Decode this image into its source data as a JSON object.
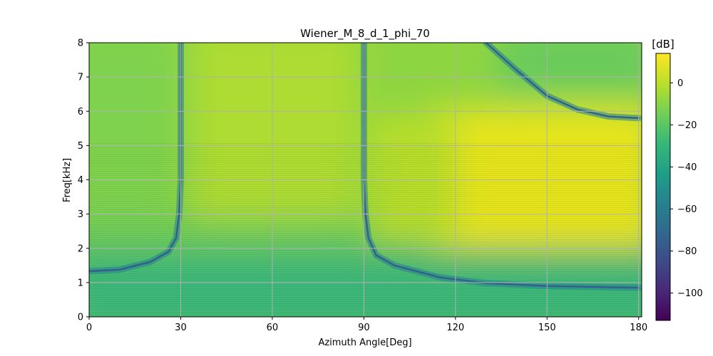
{
  "chart_data": {
    "type": "heatmap",
    "title": "Wiener_M_8_d_1_phi_70",
    "xlabel": "Azimuth Angle[Deg]",
    "ylabel": "Freq[kHz]",
    "xlim": [
      0,
      181
    ],
    "ylim": [
      0,
      8
    ],
    "xticks": [
      0,
      30,
      60,
      90,
      120,
      150,
      180
    ],
    "yticks": [
      0,
      1,
      2,
      3,
      4,
      5,
      6,
      7,
      8
    ],
    "grid": true,
    "colormap": "viridis",
    "colorbar": {
      "label": "[dB]",
      "range": [
        -113,
        14
      ],
      "ticks": [
        0,
        -20,
        -40,
        -60,
        -80,
        -100
      ],
      "placement": "right"
    },
    "null_curves": [
      {
        "description": "null near 30 deg",
        "points": [
          [
            0,
            1.33
          ],
          [
            10,
            1.38
          ],
          [
            20,
            1.6
          ],
          [
            26,
            1.9
          ],
          [
            28.5,
            2.3
          ],
          [
            29.5,
            3.0
          ],
          [
            30,
            4.0
          ],
          [
            30,
            8.0
          ]
        ]
      },
      {
        "description": "null near 90 deg",
        "points": [
          [
            90,
            8.0
          ],
          [
            90,
            4.0
          ],
          [
            90.5,
            3.0
          ],
          [
            91.5,
            2.3
          ],
          [
            94,
            1.8
          ],
          [
            100,
            1.5
          ],
          [
            115,
            1.15
          ],
          [
            130,
            0.98
          ],
          [
            150,
            0.9
          ],
          [
            180,
            0.85
          ]
        ]
      },
      {
        "description": "upper right null",
        "points": [
          [
            130,
            8.0
          ],
          [
            140,
            7.2
          ],
          [
            150,
            6.45
          ],
          [
            160,
            6.05
          ],
          [
            170,
            5.85
          ],
          [
            180,
            5.8
          ]
        ]
      }
    ],
    "level_samples_db": [
      {
        "azimuth": 0,
        "freq_khz": 0.5,
        "db": -30
      },
      {
        "azimuth": 0,
        "freq_khz": 5,
        "db": -15
      },
      {
        "azimuth": 60,
        "freq_khz": 7,
        "db": -8
      },
      {
        "azimuth": 150,
        "freq_khz": 3,
        "db": 5
      },
      {
        "azimuth": 180,
        "freq_khz": 3,
        "db": 8
      },
      {
        "azimuth": 100,
        "freq_khz": 0.5,
        "db": -28
      }
    ]
  }
}
